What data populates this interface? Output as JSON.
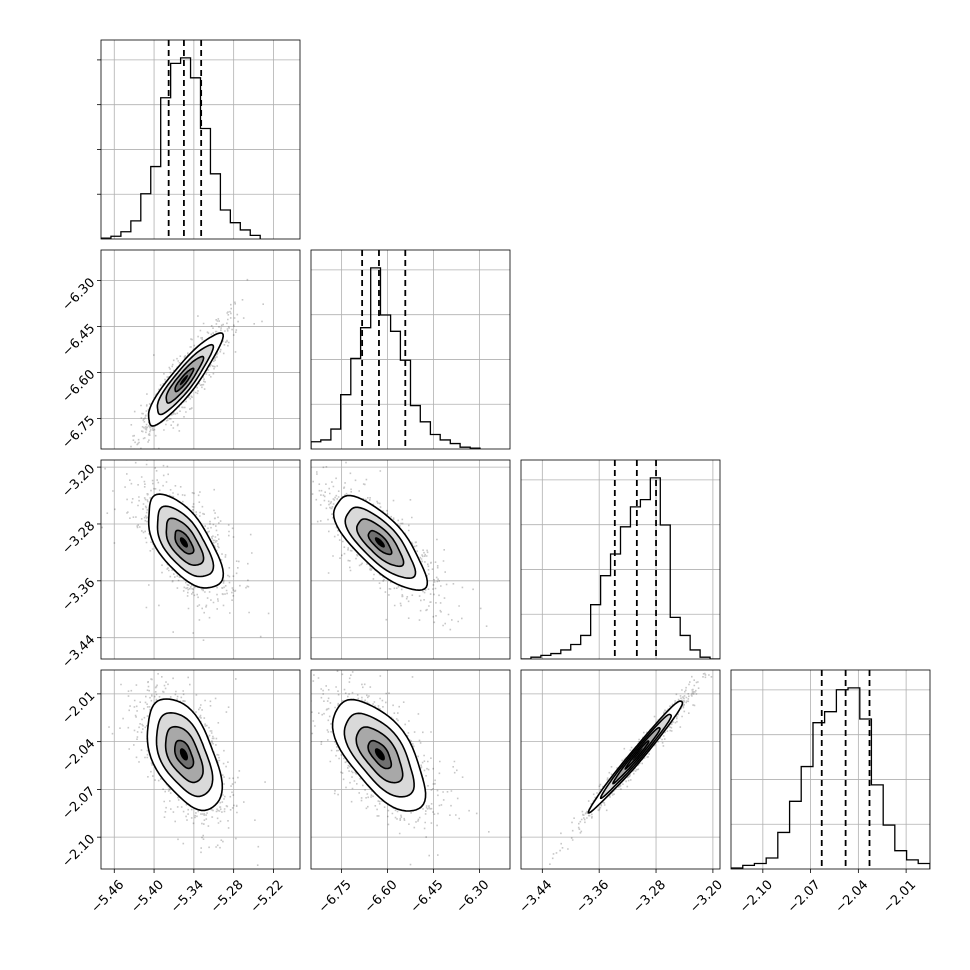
{
  "chart_data": {
    "type": "corner",
    "grid": true,
    "n_params": 4,
    "params": [
      {
        "range": [
          -5.48,
          -5.18
        ],
        "ticks": [
          "−5.46",
          "−5.40",
          "−5.34",
          "−5.28",
          "−5.22"
        ],
        "tick_values": [
          -5.46,
          -5.4,
          -5.34,
          -5.28,
          -5.22
        ],
        "quantiles": [
          -5.378,
          -5.355,
          -5.329
        ],
        "hist": {
          "edges": [
            -5.48,
            -5.465,
            -5.45,
            -5.435,
            -5.42,
            -5.405,
            -5.39,
            -5.375,
            -5.36,
            -5.345,
            -5.33,
            -5.315,
            -5.3,
            -5.285,
            -5.27,
            -5.255,
            -5.24
          ],
          "counts": [
            0.5,
            1.5,
            4,
            10,
            25,
            40,
            78,
            97,
            100,
            89,
            61,
            36,
            16,
            9,
            5,
            2
          ]
        }
      },
      {
        "range": [
          -6.85,
          -6.2
        ],
        "ticks": [
          "−6.75",
          "−6.60",
          "−6.45",
          "−6.30"
        ],
        "tick_values": [
          -6.75,
          -6.6,
          -6.45,
          -6.3
        ],
        "quantiles": [
          -6.683,
          -6.628,
          -6.542
        ],
        "hist": {
          "edges": [
            -6.85,
            -6.818,
            -6.785,
            -6.753,
            -6.72,
            -6.688,
            -6.655,
            -6.623,
            -6.59,
            -6.558,
            -6.525,
            -6.493,
            -6.46,
            -6.428,
            -6.395,
            -6.363,
            -6.33,
            -6.298
          ],
          "counts": [
            4,
            5,
            11,
            30,
            50,
            67,
            100,
            74,
            65,
            49,
            24,
            15,
            8,
            5,
            3,
            1,
            0.5
          ]
        }
      },
      {
        "range": [
          -3.47,
          -3.19
        ],
        "ticks": [
          "−3.44",
          "−3.36",
          "−3.28",
          "−3.20"
        ],
        "tick_values": [
          -3.44,
          -3.36,
          -3.28,
          -3.2
        ],
        "quantiles": [
          -3.338,
          -3.307,
          -3.28
        ],
        "hist": {
          "edges": [
            -3.47,
            -3.456,
            -3.442,
            -3.428,
            -3.414,
            -3.4,
            -3.386,
            -3.372,
            -3.358,
            -3.344,
            -3.33,
            -3.316,
            -3.302,
            -3.288,
            -3.274,
            -3.26,
            -3.246,
            -3.232,
            -3.218,
            -3.204,
            -3.19
          ],
          "counts": [
            0,
            1,
            2,
            3,
            5,
            8,
            13,
            30,
            46,
            58,
            73,
            84,
            88,
            100,
            74,
            23,
            13,
            5,
            1,
            0
          ]
        }
      },
      {
        "range": [
          -2.12,
          -1.995
        ],
        "ticks": [
          "−2.10",
          "−2.07",
          "−2.04",
          "−2.01"
        ],
        "tick_values": [
          -2.1,
          -2.07,
          -2.04,
          -2.01
        ],
        "quantiles": [
          -2.063,
          -2.048,
          -2.033
        ],
        "hist": {
          "edges": [
            -2.12,
            -2.1126,
            -2.1053,
            -2.0979,
            -2.0906,
            -2.0832,
            -2.0759,
            -2.0685,
            -2.0612,
            -2.0538,
            -2.0465,
            -2.0391,
            -2.0318,
            -2.0244,
            -2.0171,
            -2.0097,
            -2.0024,
            -1.995
          ],
          "counts": [
            0.5,
            2,
            3,
            6,
            20,
            37,
            56,
            80,
            86,
            98,
            99,
            82,
            46,
            24,
            10,
            5,
            3
          ]
        }
      }
    ],
    "pairs": [
      {
        "row": 1,
        "col": 0,
        "center": [
          -5.355,
          -6.625
        ],
        "sd": [
          0.028,
          0.075
        ],
        "rho": 0.9
      },
      {
        "row": 2,
        "col": 0,
        "center": [
          -5.355,
          -3.306
        ],
        "sd": [
          0.028,
          0.033
        ],
        "rho": -0.62
      },
      {
        "row": 2,
        "col": 1,
        "center": [
          -6.625,
          -3.306
        ],
        "sd": [
          0.075,
          0.033
        ],
        "rho": -0.74
      },
      {
        "row": 3,
        "col": 0,
        "center": [
          -5.355,
          -2.048
        ],
        "sd": [
          0.028,
          0.0175
        ],
        "rho": -0.5
      },
      {
        "row": 3,
        "col": 1,
        "center": [
          -6.625,
          -2.048
        ],
        "sd": [
          0.075,
          0.0175
        ],
        "rho": -0.62
      },
      {
        "row": 3,
        "col": 2,
        "center": [
          -3.306,
          -2.048
        ],
        "sd": [
          0.033,
          0.0175
        ],
        "rho": 0.985
      }
    ],
    "contour_levels_sigma": [
      0.5,
      1.0,
      1.5,
      2.0
    ]
  }
}
